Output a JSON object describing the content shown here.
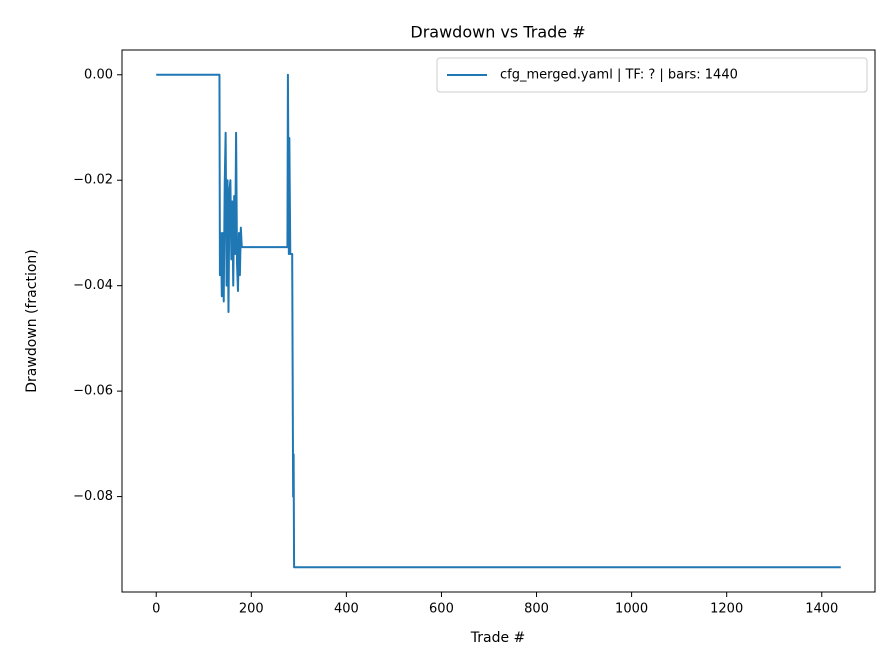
{
  "chart_data": {
    "type": "line",
    "title": "Drawdown vs Trade #",
    "xlabel": "Trade #",
    "ylabel": "Drawdown (fraction)",
    "xlim": [
      -72,
      1512
    ],
    "ylim": [
      -0.0981,
      0.0047
    ],
    "xticks": [
      0,
      200,
      400,
      600,
      800,
      1000,
      1200,
      1400
    ],
    "yticks": [
      {
        "value": 0,
        "label": "0.00"
      },
      {
        "value": -0.02,
        "label": "−0.02"
      },
      {
        "value": -0.04,
        "label": "−0.04"
      },
      {
        "value": -0.06,
        "label": "−0.06"
      },
      {
        "value": -0.08,
        "label": "−0.08"
      }
    ],
    "legend": "upper right",
    "grid": false,
    "series": [
      {
        "name": "cfg_merged.yaml | TF: ? | bars: 1440",
        "color": "#1f77b4",
        "x": [
          0,
          133,
          134,
          136,
          138,
          140,
          142,
          144,
          146,
          148,
          150,
          152,
          154,
          156,
          158,
          160,
          162,
          164,
          166,
          168,
          170,
          172,
          174,
          176,
          178,
          180,
          276,
          277,
          279,
          280,
          282,
          286,
          288,
          289,
          290,
          1440
        ],
        "values": [
          0,
          0,
          -0.038,
          -0.03,
          -0.042,
          -0.03,
          -0.043,
          -0.021,
          -0.011,
          -0.04,
          -0.02,
          -0.045,
          -0.022,
          -0.02,
          -0.035,
          -0.024,
          -0.04,
          -0.023,
          -0.034,
          -0.011,
          -0.036,
          -0.041,
          -0.03,
          -0.038,
          -0.029,
          -0.0327,
          -0.0327,
          0,
          -0.034,
          -0.012,
          -0.034,
          -0.034,
          -0.08,
          -0.072,
          -0.0934,
          -0.0934
        ]
      }
    ]
  }
}
